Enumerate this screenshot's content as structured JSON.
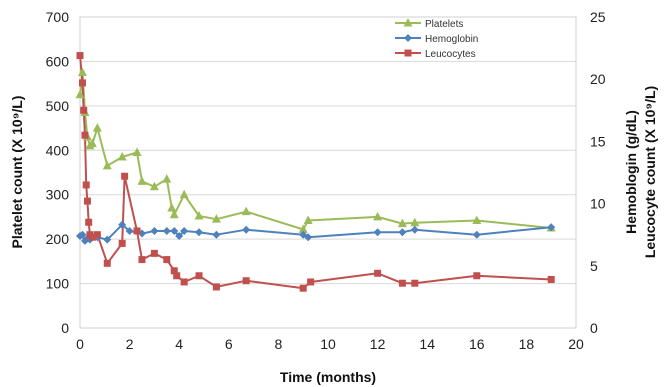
{
  "chart_data": {
    "type": "line",
    "title": "",
    "xlabel": "Time (months)",
    "ylabel_left": "Platelet count (X 10⁹/L)",
    "ylabel_right": [
      "Hemoblogin (g/dL)",
      "Leucocyte count (X 10⁹/L)"
    ],
    "xlim": [
      0,
      20
    ],
    "ylim_left": [
      0,
      700
    ],
    "ylim_right": [
      0,
      25
    ],
    "x_ticks": [
      "0",
      "2",
      "4",
      "6",
      "8",
      "10",
      "12",
      "14",
      "16",
      "18",
      "20"
    ],
    "y_ticks_left": [
      "0",
      "100",
      "200",
      "300",
      "400",
      "500",
      "600",
      "700"
    ],
    "y_ticks_right": [
      "0",
      "5",
      "10",
      "15",
      "20",
      "25"
    ],
    "grid": "horizontal",
    "legend_position": "top-right",
    "series": [
      {
        "name": "Platelets",
        "axis": "left",
        "color": "#9bbb59",
        "marker": "triangle",
        "x": [
          0.0,
          0.1,
          0.2,
          0.3,
          0.4,
          0.5,
          0.7,
          1.1,
          1.7,
          2.3,
          2.5,
          3.0,
          3.5,
          3.7,
          3.8,
          4.2,
          4.8,
          5.5,
          6.7,
          9.0,
          9.2,
          12.0,
          13.0,
          13.5,
          16.0,
          19.0
        ],
        "y": [
          525,
          575,
          485,
          430,
          410,
          415,
          450,
          365,
          385,
          395,
          330,
          318,
          335,
          270,
          255,
          300,
          252,
          245,
          262,
          222,
          242,
          250,
          235,
          237,
          242,
          225
        ]
      },
      {
        "name": "Hemoglobin",
        "axis": "right",
        "color": "#4f81bd",
        "marker": "diamond",
        "x": [
          0.0,
          0.1,
          0.2,
          0.3,
          0.4,
          0.5,
          0.7,
          1.1,
          1.7,
          2.0,
          2.5,
          3.0,
          3.5,
          3.8,
          4.0,
          4.2,
          4.8,
          5.5,
          6.7,
          9.0,
          9.2,
          12.0,
          13.0,
          13.5,
          16.0,
          19.0
        ],
        "y": [
          7.4,
          7.5,
          7.0,
          7.2,
          7.1,
          7.3,
          7.3,
          7.1,
          8.3,
          7.8,
          7.6,
          7.8,
          7.8,
          7.8,
          7.4,
          7.8,
          7.7,
          7.5,
          7.9,
          7.5,
          7.3,
          7.7,
          7.7,
          7.9,
          7.5,
          8.1
        ]
      },
      {
        "name": "Leucocytes",
        "axis": "right",
        "color": "#c0504d",
        "marker": "square",
        "x": [
          0.0,
          0.1,
          0.15,
          0.2,
          0.25,
          0.3,
          0.35,
          0.4,
          0.5,
          0.7,
          1.1,
          1.7,
          1.8,
          2.3,
          2.5,
          3.0,
          3.5,
          3.8,
          3.9,
          4.2,
          4.8,
          5.5,
          6.7,
          9.0,
          9.3,
          12.0,
          13.0,
          13.5,
          16.0,
          19.0
        ],
        "y": [
          21.9,
          19.7,
          17.5,
          15.5,
          11.5,
          10.2,
          8.5,
          7.5,
          7.3,
          7.5,
          5.2,
          6.8,
          12.2,
          7.8,
          5.5,
          6.0,
          5.5,
          4.6,
          4.2,
          3.7,
          4.2,
          3.3,
          3.8,
          3.2,
          3.7,
          4.4,
          3.6,
          3.6,
          4.2,
          3.9
        ]
      }
    ]
  }
}
